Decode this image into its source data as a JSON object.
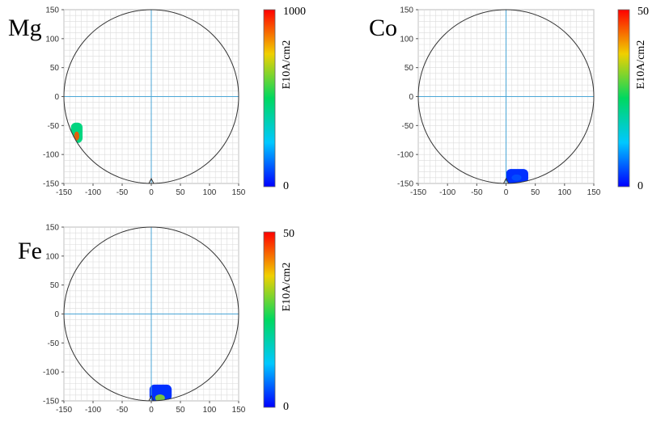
{
  "chart_data": [
    {
      "type": "heatmap",
      "element": "Mg",
      "shape": "circular wafer map",
      "xlim": [
        -150,
        150
      ],
      "ylim": [
        -150,
        150
      ],
      "xticks": [
        -150,
        -100,
        -50,
        0,
        50,
        100,
        150
      ],
      "yticks": [
        150,
        100,
        50,
        0,
        -50,
        -100,
        -150
      ],
      "grid": true,
      "colorbar": {
        "label": "E10A/cm2",
        "min": 0,
        "max": 1000,
        "min_label": "0",
        "max_label": "1000"
      },
      "hotspots": [
        {
          "x_range": [
            -138,
            -118
          ],
          "y_range": [
            -80,
            -45
          ],
          "peak_value": 900,
          "peak_location": [
            -128,
            -68
          ],
          "typical_value": 450
        }
      ]
    },
    {
      "type": "heatmap",
      "element": "Co",
      "shape": "circular wafer map",
      "xlim": [
        -150,
        150
      ],
      "ylim": [
        -150,
        150
      ],
      "xticks": [
        -150,
        -100,
        -50,
        0,
        50,
        100,
        150
      ],
      "yticks": [
        150,
        100,
        50,
        0,
        -50,
        -100,
        -150
      ],
      "grid": true,
      "colorbar": {
        "label": "E10A/cm2",
        "min": 0,
        "max": 50,
        "min_label": "0",
        "max_label": "50"
      },
      "hotspots": [
        {
          "x_range": [
            0,
            38
          ],
          "y_range": [
            -150,
            -125
          ],
          "peak_value": 5,
          "peak_location": [
            18,
            -140
          ],
          "typical_value": 3
        }
      ]
    },
    {
      "type": "heatmap",
      "element": "Fe",
      "shape": "circular wafer map",
      "xlim": [
        -150,
        150
      ],
      "ylim": [
        -150,
        150
      ],
      "xticks": [
        -150,
        -100,
        -50,
        0,
        50,
        100,
        150
      ],
      "yticks": [
        150,
        100,
        50,
        0,
        -50,
        -100,
        -150
      ],
      "grid": true,
      "colorbar": {
        "label": "E10A/cm2",
        "min": 0,
        "max": 50,
        "min_label": "0",
        "max_label": "50"
      },
      "hotspots": [
        {
          "x_range": [
            -3,
            35
          ],
          "y_range": [
            -150,
            -122
          ],
          "peak_value": 32,
          "peak_location": [
            15,
            -145
          ],
          "typical_value": 3
        }
      ]
    }
  ],
  "colors": {
    "axis_line": "#4aa6d6",
    "grid": "#dcdcdc",
    "wafer_outline": "#333333",
    "colormap": [
      "#0000ff",
      "#00c8ff",
      "#00d860",
      "#f0d000",
      "#ff0000"
    ]
  }
}
